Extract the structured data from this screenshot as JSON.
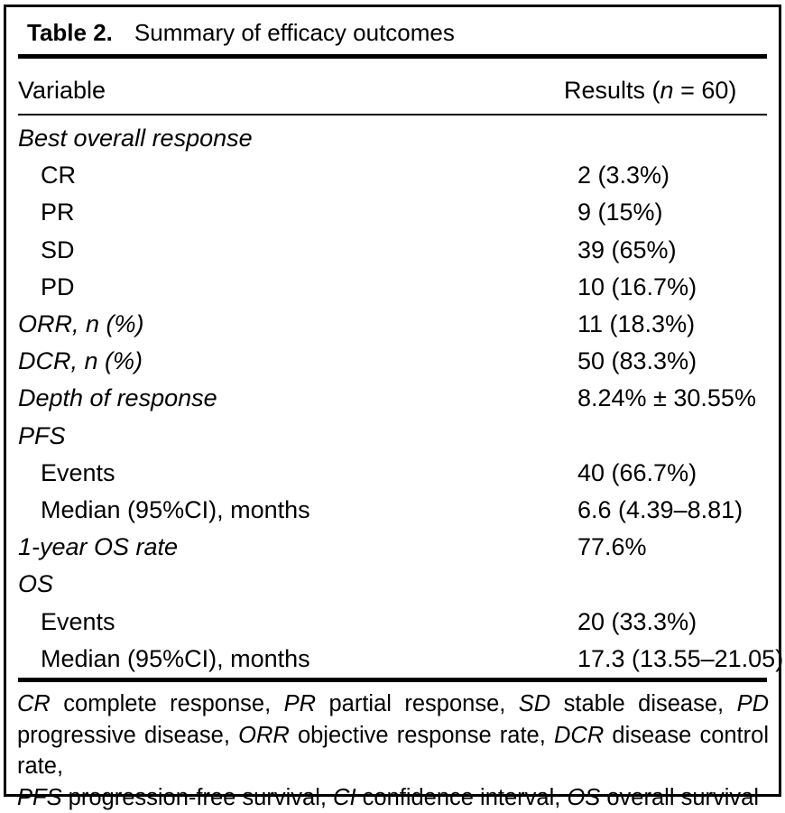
{
  "colors": {
    "text": "#000000",
    "background": "#ffffff",
    "rule": "#000000"
  },
  "table": {
    "label": "Table 2.",
    "title": "Summary of efficacy outcomes",
    "columns": {
      "variable": "Variable",
      "results_runs": [
        {
          "t": "Results (",
          "i": false
        },
        {
          "t": "n",
          "i": true
        },
        {
          "t": " = 60)",
          "i": false
        }
      ]
    },
    "rows": [
      {
        "label": "Best overall response",
        "value": "",
        "italic": true,
        "indent": 0
      },
      {
        "label": "CR",
        "value": "2 (3.3%)",
        "italic": false,
        "indent": 1
      },
      {
        "label": "PR",
        "value": "9 (15%)",
        "italic": false,
        "indent": 1
      },
      {
        "label": "SD",
        "value": "39 (65%)",
        "italic": false,
        "indent": 1
      },
      {
        "label": "PD",
        "value": "10 (16.7%)",
        "italic": false,
        "indent": 1
      },
      {
        "label": "ORR, n (%)",
        "value": "11 (18.3%)",
        "italic": true,
        "indent": 0
      },
      {
        "label": "DCR, n (%)",
        "value": "50 (83.3%)",
        "italic": true,
        "indent": 0
      },
      {
        "label": "Depth of response",
        "value": "8.24% ± 30.55%",
        "italic": true,
        "indent": 0
      },
      {
        "label": "PFS",
        "value": "",
        "italic": true,
        "indent": 0
      },
      {
        "label": "Events",
        "value": "40 (66.7%)",
        "italic": false,
        "indent": 1
      },
      {
        "label": "Median (95%CI), months",
        "value": "6.6 (4.39–8.81)",
        "italic": false,
        "indent": 1
      },
      {
        "label": "1-year OS rate",
        "value": "77.6%",
        "italic": true,
        "indent": 0
      },
      {
        "label": "OS",
        "value": "",
        "italic": true,
        "indent": 0
      },
      {
        "label": "Events",
        "value": "20 (33.3%)",
        "italic": false,
        "indent": 1
      },
      {
        "label": "Median (95%CI), months",
        "value": "17.3 (13.55–21.05)",
        "italic": false,
        "indent": 1
      }
    ],
    "footnote_lines": [
      [
        {
          "t": "CR",
          "i": true
        },
        {
          "t": " complete response, ",
          "i": false
        },
        {
          "t": "PR",
          "i": true
        },
        {
          "t": " partial response, ",
          "i": false
        },
        {
          "t": "SD",
          "i": true
        },
        {
          "t": " stable disease, ",
          "i": false
        },
        {
          "t": "PD",
          "i": true
        }
      ],
      [
        {
          "t": "progressive disease, ",
          "i": false
        },
        {
          "t": "ORR",
          "i": true
        },
        {
          "t": " objective response rate, ",
          "i": false
        },
        {
          "t": "DCR",
          "i": true
        },
        {
          "t": " disease control rate,",
          "i": false
        }
      ],
      [
        {
          "t": "PFS",
          "i": true
        },
        {
          "t": " progression-free survival, ",
          "i": false
        },
        {
          "t": "CI",
          "i": true
        },
        {
          "t": " confidence interval, ",
          "i": false
        },
        {
          "t": "OS",
          "i": true
        },
        {
          "t": " overall survival",
          "i": false
        }
      ]
    ]
  }
}
